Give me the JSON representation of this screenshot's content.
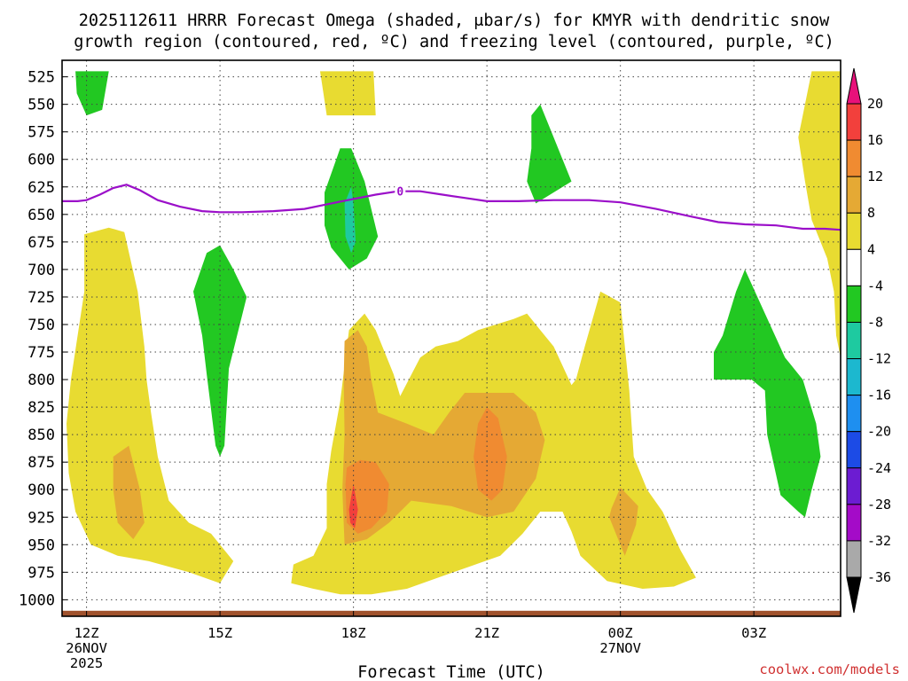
{
  "chart_data": {
    "type": "heatmap",
    "title_line1": "2025112611 HRRR Forecast Omega (shaded, μbar/s) for KMYR with dendritic snow",
    "title_line2": "growth region (contoured, red, ºC) and freezing level (contoured, purple, ºC)",
    "xlabel": "Forecast Time (UTC)",
    "ylabel": "",
    "x_ticks": [
      {
        "hour": 12,
        "lines": [
          "12Z",
          "26NOV",
          "2025"
        ]
      },
      {
        "hour": 15,
        "lines": [
          "15Z"
        ]
      },
      {
        "hour": 18,
        "lines": [
          "18Z"
        ]
      },
      {
        "hour": 21,
        "lines": [
          "21Z"
        ]
      },
      {
        "hour": 24,
        "lines": [
          "00Z",
          "27NOV"
        ]
      },
      {
        "hour": 27,
        "lines": [
          "03Z"
        ]
      }
    ],
    "xlim": [
      11.45,
      28.95
    ],
    "ylim": [
      1015,
      510
    ],
    "y_ticks": [
      525,
      550,
      575,
      600,
      625,
      650,
      675,
      700,
      725,
      750,
      775,
      800,
      825,
      850,
      875,
      900,
      925,
      950,
      975,
      1000
    ],
    "colorbar": {
      "labels": [
        "20",
        "16",
        "12",
        "8",
        "4",
        "-4",
        "-8",
        "-12",
        "-16",
        "-20",
        "-24",
        "-28",
        "-32",
        "-36"
      ],
      "colors": [
        "#e8117a",
        "#f2403c",
        "#f08b31",
        "#e5a934",
        "#e8db31",
        "#ffffff",
        "#22c822",
        "#1ecaa0",
        "#1cb8cf",
        "#1e8ff0",
        "#1c4be6",
        "#6c1cd2",
        "#a40bc8",
        "#a9a9a9",
        "#000000"
      ]
    },
    "omega_regions": [
      {
        "level": "4-8",
        "color": "#e8db31",
        "points": [
          [
            11.55,
            840
          ],
          [
            11.65,
            800
          ],
          [
            11.95,
            720
          ],
          [
            11.95,
            668
          ],
          [
            12.5,
            662
          ],
          [
            12.85,
            666
          ],
          [
            13.15,
            720
          ],
          [
            13.3,
            770
          ],
          [
            13.35,
            800
          ],
          [
            13.45,
            830
          ],
          [
            13.6,
            870
          ],
          [
            13.85,
            910
          ],
          [
            14.3,
            930
          ],
          [
            14.8,
            940
          ],
          [
            15.3,
            965
          ],
          [
            15.0,
            985
          ],
          [
            14.3,
            975
          ],
          [
            13.4,
            965
          ],
          [
            12.7,
            960
          ],
          [
            12.1,
            950
          ],
          [
            11.75,
            920
          ],
          [
            11.6,
            885
          ]
        ]
      },
      {
        "level": "8-12",
        "color": "#e5a934",
        "points": [
          [
            12.6,
            870
          ],
          [
            12.95,
            860
          ],
          [
            13.2,
            900
          ],
          [
            13.3,
            930
          ],
          [
            13.05,
            945
          ],
          [
            12.7,
            930
          ],
          [
            12.6,
            900
          ]
        ]
      },
      {
        "level": "4-8",
        "color": "#e8db31",
        "points": [
          [
            16.65,
            968
          ],
          [
            17.1,
            960
          ],
          [
            17.4,
            935
          ],
          [
            17.4,
            895
          ],
          [
            17.5,
            865
          ],
          [
            17.7,
            820
          ],
          [
            17.9,
            755
          ],
          [
            18.25,
            740
          ],
          [
            18.5,
            755
          ],
          [
            18.9,
            795
          ],
          [
            19.05,
            815
          ],
          [
            19.5,
            780
          ],
          [
            19.85,
            770
          ],
          [
            20.35,
            765
          ],
          [
            20.8,
            755
          ],
          [
            21.2,
            750
          ],
          [
            21.6,
            745
          ],
          [
            21.9,
            740
          ],
          [
            22.2,
            755
          ],
          [
            22.5,
            770
          ],
          [
            22.9,
            805
          ],
          [
            23.0,
            800
          ],
          [
            23.2,
            770
          ],
          [
            23.55,
            720
          ],
          [
            24.0,
            730
          ],
          [
            24.2,
            810
          ],
          [
            24.3,
            870
          ],
          [
            24.6,
            900
          ],
          [
            24.95,
            920
          ],
          [
            25.35,
            955
          ],
          [
            25.7,
            980
          ],
          [
            25.2,
            988
          ],
          [
            24.5,
            990
          ],
          [
            23.7,
            983
          ],
          [
            23.1,
            960
          ],
          [
            22.9,
            938
          ],
          [
            22.7,
            920
          ],
          [
            22.2,
            920
          ],
          [
            21.8,
            940
          ],
          [
            21.3,
            960
          ],
          [
            20.6,
            970
          ],
          [
            19.9,
            980
          ],
          [
            19.2,
            990
          ],
          [
            18.4,
            995
          ],
          [
            17.7,
            995
          ],
          [
            17.1,
            990
          ],
          [
            16.6,
            985
          ]
        ]
      },
      {
        "level": "8-12",
        "color": "#e5a934",
        "points": [
          [
            17.8,
            950
          ],
          [
            17.75,
            900
          ],
          [
            17.8,
            850
          ],
          [
            17.78,
            800
          ],
          [
            17.8,
            765
          ],
          [
            18.1,
            755
          ],
          [
            18.3,
            770
          ],
          [
            18.4,
            800
          ],
          [
            18.55,
            830
          ],
          [
            19.2,
            840
          ],
          [
            19.8,
            850
          ],
          [
            20.15,
            830
          ],
          [
            20.5,
            812
          ],
          [
            21.2,
            812
          ],
          [
            21.6,
            812
          ],
          [
            22.1,
            830
          ],
          [
            22.3,
            855
          ],
          [
            22.1,
            890
          ],
          [
            21.6,
            920
          ],
          [
            21.0,
            925
          ],
          [
            20.2,
            915
          ],
          [
            19.3,
            910
          ],
          [
            18.8,
            930
          ],
          [
            18.3,
            945
          ]
        ]
      },
      {
        "level": "12-16",
        "color": "#f08b31",
        "points": [
          [
            17.85,
            930
          ],
          [
            17.82,
            895
          ],
          [
            17.85,
            880
          ],
          [
            18.15,
            873
          ],
          [
            18.5,
            875
          ],
          [
            18.8,
            895
          ],
          [
            18.75,
            920
          ],
          [
            18.4,
            935
          ],
          [
            18.1,
            940
          ]
        ]
      },
      {
        "level": "12-16",
        "color": "#f08b31",
        "points": [
          [
            20.7,
            870
          ],
          [
            20.8,
            840
          ],
          [
            21.0,
            825
          ],
          [
            21.25,
            835
          ],
          [
            21.45,
            870
          ],
          [
            21.35,
            900
          ],
          [
            21.1,
            910
          ],
          [
            20.8,
            900
          ]
        ]
      },
      {
        "level": "16-20",
        "color": "#f2403c",
        "points": [
          [
            17.9,
            918
          ],
          [
            18.0,
            895
          ],
          [
            18.1,
            918
          ],
          [
            18.03,
            935
          ],
          [
            17.93,
            930
          ]
        ]
      },
      {
        "level": "8-12",
        "color": "#e5a934",
        "points": [
          [
            23.8,
            917
          ],
          [
            24.0,
            898
          ],
          [
            24.4,
            915
          ],
          [
            24.35,
            932
          ],
          [
            24.1,
            960
          ],
          [
            23.95,
            945
          ],
          [
            23.75,
            925
          ]
        ]
      },
      {
        "level": "4-8",
        "color": "#e8db31",
        "points": [
          [
            17.25,
            520
          ],
          [
            17.8,
            520
          ],
          [
            18.05,
            520
          ],
          [
            18.3,
            520
          ],
          [
            18.45,
            520
          ],
          [
            18.5,
            560
          ],
          [
            18.15,
            560
          ],
          [
            17.4,
            560
          ]
        ]
      },
      {
        "level": "4-8",
        "color": "#e8db31",
        "points": [
          [
            28.3,
            520
          ],
          [
            28.95,
            520
          ],
          [
            28.95,
            780
          ],
          [
            28.85,
            760
          ],
          [
            28.8,
            720
          ],
          [
            28.65,
            690
          ],
          [
            28.3,
            655
          ],
          [
            28.15,
            620
          ],
          [
            28.0,
            580
          ],
          [
            28.3,
            520
          ]
        ]
      },
      {
        "level": "-4 to -8",
        "color": "#22c822",
        "points": [
          [
            11.75,
            520
          ],
          [
            12.2,
            520
          ],
          [
            12.5,
            520
          ],
          [
            12.35,
            555
          ],
          [
            12.0,
            560
          ],
          [
            11.78,
            540
          ]
        ]
      },
      {
        "level": "-4 to -8",
        "color": "#22c822",
        "points": [
          [
            14.4,
            720
          ],
          [
            14.7,
            685
          ],
          [
            15.0,
            678
          ],
          [
            15.3,
            700
          ],
          [
            15.6,
            725
          ],
          [
            15.2,
            790
          ],
          [
            15.1,
            860
          ],
          [
            15.0,
            870
          ],
          [
            14.9,
            860
          ],
          [
            14.7,
            795
          ],
          [
            14.6,
            760
          ]
        ]
      },
      {
        "level": "-4 to -8",
        "color": "#22c822",
        "points": [
          [
            17.35,
            630
          ],
          [
            17.7,
            590
          ],
          [
            17.95,
            590
          ],
          [
            18.25,
            620
          ],
          [
            18.55,
            670
          ],
          [
            18.3,
            690
          ],
          [
            17.9,
            700
          ],
          [
            17.5,
            680
          ],
          [
            17.35,
            660
          ]
        ]
      },
      {
        "level": "-8 to -12",
        "color": "#1ecaa0",
        "points": [
          [
            17.8,
            640
          ],
          [
            17.95,
            625
          ],
          [
            18.0,
            640
          ],
          [
            18.05,
            675
          ],
          [
            17.95,
            685
          ],
          [
            17.82,
            670
          ]
        ]
      },
      {
        "level": "-4 to -8",
        "color": "#22c822",
        "points": [
          [
            22.0,
            560
          ],
          [
            22.2,
            550
          ],
          [
            22.5,
            580
          ],
          [
            22.9,
            620
          ],
          [
            22.5,
            630
          ],
          [
            22.1,
            640
          ],
          [
            21.9,
            620
          ],
          [
            22.0,
            590
          ]
        ]
      },
      {
        "level": "-4 to -8",
        "color": "#22c822",
        "points": [
          [
            26.1,
            775
          ],
          [
            26.3,
            760
          ],
          [
            26.6,
            720
          ],
          [
            26.8,
            700
          ],
          [
            27.25,
            740
          ],
          [
            27.7,
            780
          ],
          [
            28.1,
            800
          ],
          [
            28.4,
            840
          ],
          [
            28.5,
            870
          ],
          [
            28.3,
            900
          ],
          [
            28.15,
            925
          ],
          [
            28.0,
            920
          ],
          [
            27.6,
            905
          ],
          [
            27.3,
            850
          ],
          [
            27.25,
            810
          ],
          [
            26.95,
            800
          ],
          [
            26.5,
            800
          ],
          [
            26.1,
            800
          ]
        ]
      }
    ],
    "freezing_level": {
      "label": "0",
      "color": "#9b0fc9",
      "label_hour": 19.05,
      "points": [
        [
          11.45,
          638
        ],
        [
          11.8,
          638
        ],
        [
          12.0,
          637
        ],
        [
          12.3,
          632
        ],
        [
          12.6,
          626
        ],
        [
          12.9,
          623
        ],
        [
          13.2,
          628
        ],
        [
          13.6,
          637
        ],
        [
          14.1,
          643
        ],
        [
          14.6,
          647
        ],
        [
          15.0,
          648
        ],
        [
          15.5,
          648
        ],
        [
          16.2,
          647
        ],
        [
          16.9,
          645
        ],
        [
          17.5,
          640
        ],
        [
          18.0,
          636
        ],
        [
          18.5,
          632
        ],
        [
          19.0,
          629
        ],
        [
          19.5,
          629
        ],
        [
          20.0,
          632
        ],
        [
          20.5,
          635
        ],
        [
          21.0,
          638
        ],
        [
          21.7,
          638
        ],
        [
          22.5,
          637
        ],
        [
          23.3,
          637
        ],
        [
          24.0,
          639
        ],
        [
          24.8,
          645
        ],
        [
          25.6,
          652
        ],
        [
          26.2,
          657
        ],
        [
          26.8,
          659
        ],
        [
          27.5,
          660
        ],
        [
          28.1,
          663
        ],
        [
          28.6,
          663
        ],
        [
          28.95,
          664
        ]
      ]
    },
    "terrain_pressure": 1010,
    "watermark": "coolwx.com/models"
  }
}
